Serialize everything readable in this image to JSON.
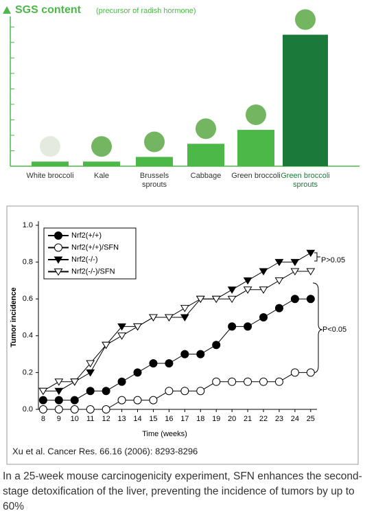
{
  "chart_data": [
    {
      "type": "bar",
      "title": "SGS content",
      "subtitle": "(precursor of radish hormone)",
      "categories": [
        "White broccoli",
        "Kale",
        "Brussels sprouts",
        "Cabbage",
        "Green broccoli",
        "Green broccoli sprouts"
      ],
      "values": [
        0.3,
        0.3,
        0.6,
        1.45,
        2.35,
        8.5
      ],
      "colors": [
        "#4cb847",
        "#4cb847",
        "#4cb847",
        "#4cb847",
        "#4cb847",
        "#1b7a3a"
      ],
      "ylim": [
        0,
        9.5
      ],
      "yticks": [
        0,
        1,
        2,
        3,
        4,
        5,
        6,
        7,
        8,
        9
      ]
    },
    {
      "type": "line",
      "x_label": "Time (weeks)",
      "y_label": "Tumor incidence",
      "x": [
        8,
        9,
        10,
        11,
        12,
        13,
        14,
        15,
        16,
        17,
        18,
        19,
        20,
        21,
        22,
        23,
        24,
        25
      ],
      "xlim": [
        7.7,
        25.4
      ],
      "xticks": [
        8,
        9,
        10,
        11,
        12,
        13,
        14,
        15,
        16,
        17,
        18,
        19,
        20,
        21,
        22,
        23,
        24,
        25
      ],
      "ylim": [
        0,
        1
      ],
      "yticks": [
        {
          "value": 0,
          "label": "0.0"
        },
        0.2,
        0.4,
        0.6,
        0.8,
        {
          "value": 1,
          "label": "1.0"
        }
      ],
      "series": [
        {
          "name": "Nrf2(+/+)",
          "color": "#000000",
          "marker": "circle",
          "filled": true,
          "values": [
            0.05,
            0.05,
            0.05,
            0.1,
            0.1,
            0.15,
            0.2,
            0.25,
            0.25,
            0.3,
            0.3,
            0.35,
            0.45,
            0.45,
            0.5,
            0.55,
            0.6,
            0.6
          ]
        },
        {
          "name": "Nrf2(+/+)/SFN",
          "color": "#000000",
          "marker": "circle",
          "filled": false,
          "values": [
            0,
            0,
            0,
            0,
            0,
            0.05,
            0.05,
            0.05,
            0.1,
            0.1,
            0.1,
            0.15,
            0.15,
            0.15,
            0.15,
            0.15,
            0.2,
            0.2
          ]
        },
        {
          "name": "Nrf2(-/-)",
          "color": "#000000",
          "marker": "triangle",
          "filled": true,
          "values": [
            0.1,
            0.1,
            0.15,
            0.2,
            0.35,
            0.45,
            0.45,
            0.5,
            0.5,
            0.5,
            0.6,
            0.6,
            0.65,
            0.7,
            0.75,
            0.8,
            0.8,
            0.85
          ]
        },
        {
          "name": "Nrf2(-/-)/SFN",
          "color": "#000000",
          "marker": "triangle",
          "filled": false,
          "values": [
            0.1,
            0.15,
            0.15,
            0.25,
            0.35,
            0.4,
            0.45,
            0.5,
            0.5,
            0.55,
            0.6,
            0.6,
            0.6,
            0.65,
            0.65,
            0.7,
            0.75,
            0.75
          ]
        }
      ],
      "annotations": [
        "P>0.05",
        "P<0.05"
      ],
      "citation": "Xu et al. Cancer Res. 66.16 (2006): 8293-8296"
    }
  ],
  "caption": "In a 25-week mouse carcinogenicity experiment, SFN enhances the second-stage detoxification of the liver, preventing the incidence of tumors by up to 60%"
}
